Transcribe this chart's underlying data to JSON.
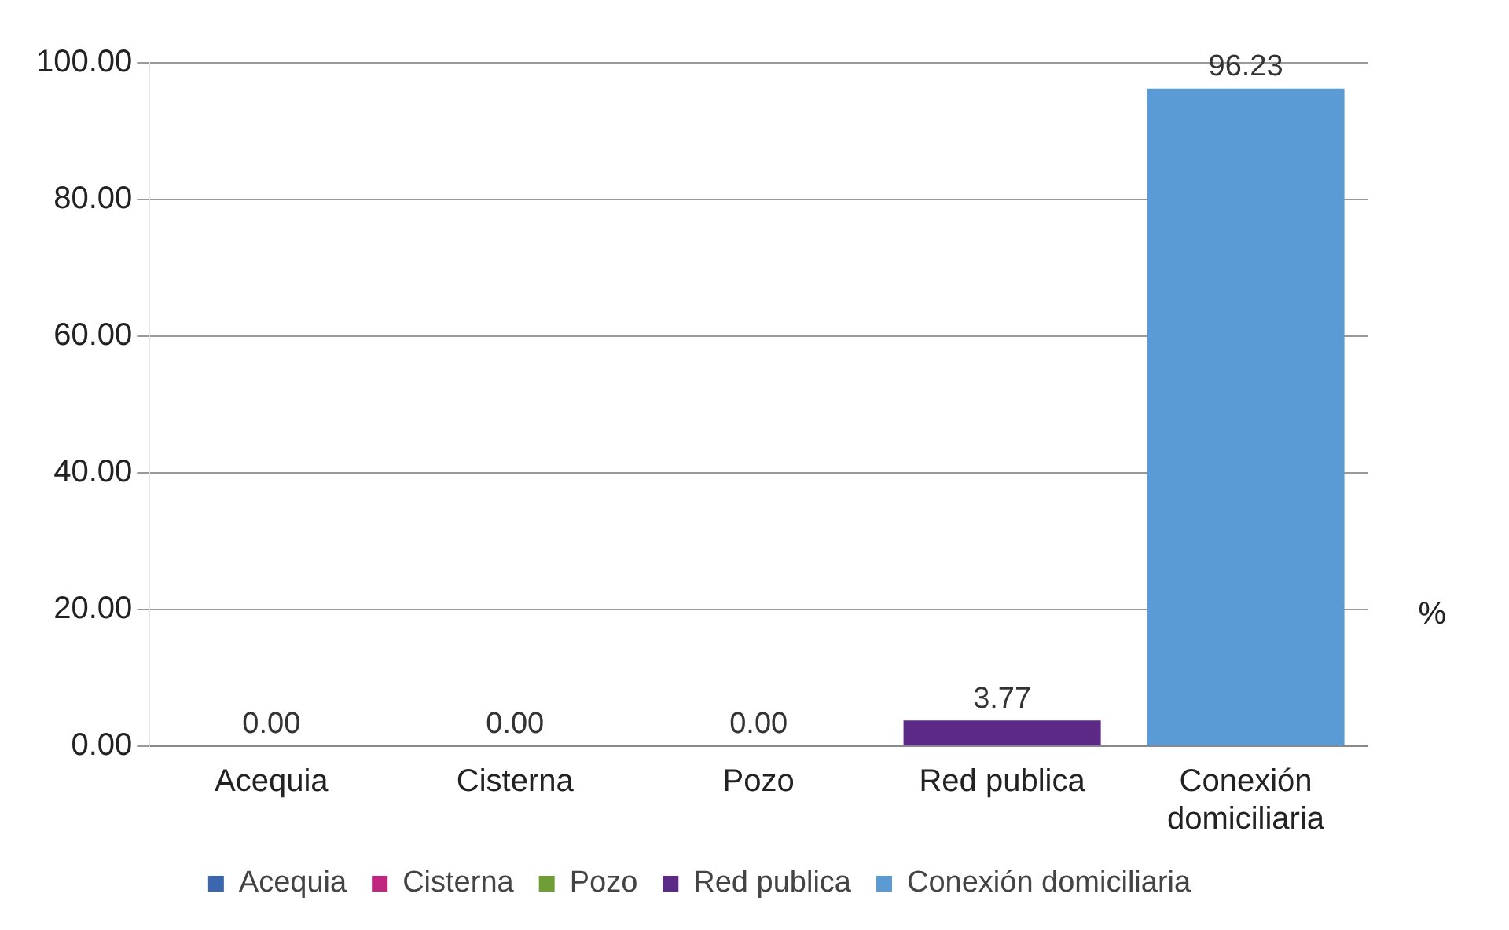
{
  "chart_data": {
    "type": "bar",
    "categories": [
      "Acequia",
      "Cisterna",
      "Pozo",
      "Red publica",
      "Conexión domiciliaria"
    ],
    "series": [
      {
        "name": "Acequia",
        "color": "#3a67b0",
        "values": [
          0,
          null,
          null,
          null,
          null
        ],
        "value_labels": [
          "0.00",
          null,
          null,
          null,
          null
        ]
      },
      {
        "name": "Cisterna",
        "color": "#c0267f",
        "values": [
          null,
          0,
          null,
          null,
          null
        ],
        "value_labels": [
          null,
          "0.00",
          null,
          null,
          null
        ]
      },
      {
        "name": "Pozo",
        "color": "#6e9e35",
        "values": [
          null,
          null,
          0,
          null,
          null
        ],
        "value_labels": [
          null,
          null,
          "0.00",
          null,
          null
        ]
      },
      {
        "name": "Red publica",
        "color": "#5c2a86",
        "values": [
          null,
          null,
          null,
          3.77,
          null
        ],
        "value_labels": [
          null,
          null,
          null,
          "3.77",
          null
        ]
      },
      {
        "name": "Conexión domiciliaria",
        "color": "#5b9bd5",
        "values": [
          null,
          null,
          null,
          null,
          96.23
        ],
        "value_labels": [
          null,
          null,
          null,
          null,
          "96.23"
        ]
      }
    ],
    "ylim": [
      0,
      100
    ],
    "yticks": [
      {
        "value": 0,
        "label": "0.00"
      },
      {
        "value": 20,
        "label": "20.00"
      },
      {
        "value": 40,
        "label": "40.00"
      },
      {
        "value": 60,
        "label": "60.00"
      },
      {
        "value": 80,
        "label": "80.00"
      },
      {
        "value": 100,
        "label": "100.00"
      }
    ],
    "grid": "y",
    "legend": "bottom",
    "annotations": [
      "%"
    ]
  }
}
